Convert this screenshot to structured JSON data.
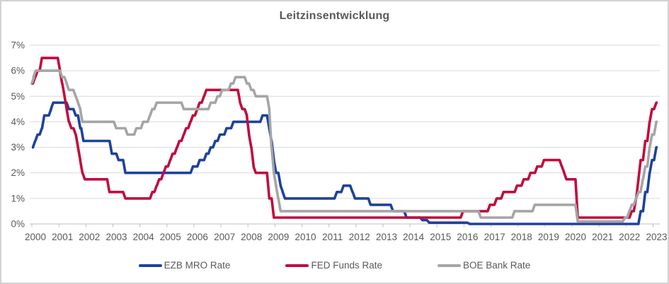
{
  "chart_data": {
    "type": "line",
    "title": "Leitzinsentwicklung",
    "xlabel": "",
    "ylabel": "",
    "x_ticks": [
      "2000",
      "2001",
      "2002",
      "2003",
      "2004",
      "2005",
      "2006",
      "2007",
      "2008",
      "2009",
      "2010",
      "2011",
      "2012",
      "2013",
      "2014",
      "2015",
      "2016",
      "2017",
      "2018",
      "2019",
      "2020",
      "2021",
      "2022",
      "2023"
    ],
    "y_ticks": [
      "0%",
      "1%",
      "2%",
      "3%",
      "4%",
      "5%",
      "6%",
      "7%"
    ],
    "xlim": [
      2000,
      2023.25
    ],
    "ylim": [
      0,
      7
    ],
    "x_end": 2023.17,
    "grid": true,
    "legend_position": "bottom",
    "colors": {
      "gridline": "#d9d9d9",
      "axis": "#bfbfbf",
      "text": "#595959",
      "title": "#595959"
    },
    "series": [
      {
        "name": "EZB MRO Rate",
        "color": "#1e429b",
        "step_points": [
          [
            2000.0,
            3.0
          ],
          [
            2000.08,
            3.25
          ],
          [
            2000.17,
            3.5
          ],
          [
            2000.33,
            3.75
          ],
          [
            2000.42,
            4.25
          ],
          [
            2000.67,
            4.5
          ],
          [
            2000.75,
            4.75
          ],
          [
            2001.33,
            4.5
          ],
          [
            2001.58,
            4.25
          ],
          [
            2001.75,
            3.75
          ],
          [
            2001.87,
            3.25
          ],
          [
            2002.92,
            2.75
          ],
          [
            2003.17,
            2.5
          ],
          [
            2003.42,
            2.0
          ],
          [
            2005.92,
            2.25
          ],
          [
            2006.17,
            2.5
          ],
          [
            2006.42,
            2.75
          ],
          [
            2006.58,
            3.0
          ],
          [
            2006.75,
            3.25
          ],
          [
            2006.92,
            3.5
          ],
          [
            2007.17,
            3.75
          ],
          [
            2007.42,
            4.0
          ],
          [
            2008.5,
            4.25
          ],
          [
            2008.75,
            3.75
          ],
          [
            2008.83,
            3.25
          ],
          [
            2008.92,
            2.5
          ],
          [
            2009.0,
            2.0
          ],
          [
            2009.17,
            1.5
          ],
          [
            2009.25,
            1.25
          ],
          [
            2009.33,
            1.0
          ],
          [
            2011.25,
            1.25
          ],
          [
            2011.5,
            1.5
          ],
          [
            2011.83,
            1.25
          ],
          [
            2011.92,
            1.0
          ],
          [
            2012.5,
            0.75
          ],
          [
            2013.33,
            0.5
          ],
          [
            2013.83,
            0.25
          ],
          [
            2014.42,
            0.15
          ],
          [
            2014.67,
            0.05
          ],
          [
            2016.17,
            0.0
          ],
          [
            2022.5,
            0.5
          ],
          [
            2022.67,
            1.25
          ],
          [
            2022.83,
            2.0
          ],
          [
            2022.92,
            2.5
          ],
          [
            2023.08,
            3.0
          ]
        ]
      },
      {
        "name": "FED Funds Rate",
        "color": "#c00b3d",
        "step_points": [
          [
            2000.0,
            5.5
          ],
          [
            2000.08,
            5.75
          ],
          [
            2000.17,
            6.0
          ],
          [
            2000.33,
            6.5
          ],
          [
            2001.0,
            6.0
          ],
          [
            2001.08,
            5.5
          ],
          [
            2001.17,
            5.0
          ],
          [
            2001.25,
            4.5
          ],
          [
            2001.33,
            4.0
          ],
          [
            2001.42,
            3.75
          ],
          [
            2001.58,
            3.5
          ],
          [
            2001.67,
            3.0
          ],
          [
            2001.75,
            2.5
          ],
          [
            2001.83,
            2.0
          ],
          [
            2001.92,
            1.75
          ],
          [
            2002.83,
            1.25
          ],
          [
            2003.42,
            1.0
          ],
          [
            2004.42,
            1.25
          ],
          [
            2004.58,
            1.5
          ],
          [
            2004.67,
            1.75
          ],
          [
            2004.83,
            2.0
          ],
          [
            2004.92,
            2.25
          ],
          [
            2005.08,
            2.5
          ],
          [
            2005.17,
            2.75
          ],
          [
            2005.33,
            3.0
          ],
          [
            2005.42,
            3.25
          ],
          [
            2005.58,
            3.5
          ],
          [
            2005.67,
            3.75
          ],
          [
            2005.83,
            4.0
          ],
          [
            2005.92,
            4.25
          ],
          [
            2006.08,
            4.5
          ],
          [
            2006.17,
            4.75
          ],
          [
            2006.33,
            5.0
          ],
          [
            2006.42,
            5.25
          ],
          [
            2007.67,
            4.75
          ],
          [
            2007.75,
            4.5
          ],
          [
            2007.92,
            4.25
          ],
          [
            2008.0,
            3.5
          ],
          [
            2008.08,
            3.0
          ],
          [
            2008.17,
            2.25
          ],
          [
            2008.25,
            2.0
          ],
          [
            2008.75,
            1.0
          ],
          [
            2008.92,
            0.25
          ],
          [
            2015.92,
            0.5
          ],
          [
            2016.92,
            0.75
          ],
          [
            2017.17,
            1.0
          ],
          [
            2017.42,
            1.25
          ],
          [
            2017.92,
            1.5
          ],
          [
            2018.17,
            1.75
          ],
          [
            2018.42,
            2.0
          ],
          [
            2018.67,
            2.25
          ],
          [
            2018.92,
            2.5
          ],
          [
            2019.58,
            2.25
          ],
          [
            2019.67,
            2.0
          ],
          [
            2019.75,
            1.75
          ],
          [
            2020.17,
            0.25
          ],
          [
            2022.17,
            0.5
          ],
          [
            2022.33,
            1.0
          ],
          [
            2022.42,
            1.75
          ],
          [
            2022.5,
            2.5
          ],
          [
            2022.67,
            3.25
          ],
          [
            2022.83,
            4.0
          ],
          [
            2022.92,
            4.5
          ],
          [
            2023.08,
            4.75
          ]
        ]
      },
      {
        "name": "BOE Bank Rate",
        "color": "#a5a5a5",
        "step_points": [
          [
            2000.0,
            5.5
          ],
          [
            2000.04,
            5.75
          ],
          [
            2000.1,
            6.0
          ],
          [
            2001.08,
            5.75
          ],
          [
            2001.25,
            5.5
          ],
          [
            2001.33,
            5.25
          ],
          [
            2001.58,
            5.0
          ],
          [
            2001.67,
            4.75
          ],
          [
            2001.75,
            4.5
          ],
          [
            2001.83,
            4.0
          ],
          [
            2003.08,
            3.75
          ],
          [
            2003.5,
            3.5
          ],
          [
            2003.83,
            3.75
          ],
          [
            2004.08,
            4.0
          ],
          [
            2004.33,
            4.25
          ],
          [
            2004.42,
            4.5
          ],
          [
            2004.58,
            4.75
          ],
          [
            2005.58,
            4.5
          ],
          [
            2006.58,
            4.75
          ],
          [
            2006.83,
            5.0
          ],
          [
            2007.0,
            5.25
          ],
          [
            2007.33,
            5.5
          ],
          [
            2007.5,
            5.75
          ],
          [
            2007.92,
            5.5
          ],
          [
            2008.08,
            5.25
          ],
          [
            2008.25,
            5.0
          ],
          [
            2008.75,
            4.5
          ],
          [
            2008.83,
            3.0
          ],
          [
            2008.92,
            2.0
          ],
          [
            2009.0,
            1.5
          ],
          [
            2009.08,
            1.0
          ],
          [
            2009.17,
            0.5
          ],
          [
            2016.58,
            0.25
          ],
          [
            2017.83,
            0.5
          ],
          [
            2018.58,
            0.75
          ],
          [
            2020.17,
            0.1
          ],
          [
            2021.92,
            0.25
          ],
          [
            2022.08,
            0.5
          ],
          [
            2022.17,
            0.75
          ],
          [
            2022.33,
            1.0
          ],
          [
            2022.42,
            1.25
          ],
          [
            2022.58,
            1.75
          ],
          [
            2022.67,
            2.25
          ],
          [
            2022.83,
            3.0
          ],
          [
            2022.92,
            3.5
          ],
          [
            2023.08,
            4.0
          ]
        ]
      }
    ]
  },
  "legend": {
    "items": [
      {
        "label": "EZB MRO Rate"
      },
      {
        "label": "FED Funds Rate"
      },
      {
        "label": "BOE Bank Rate"
      }
    ]
  }
}
